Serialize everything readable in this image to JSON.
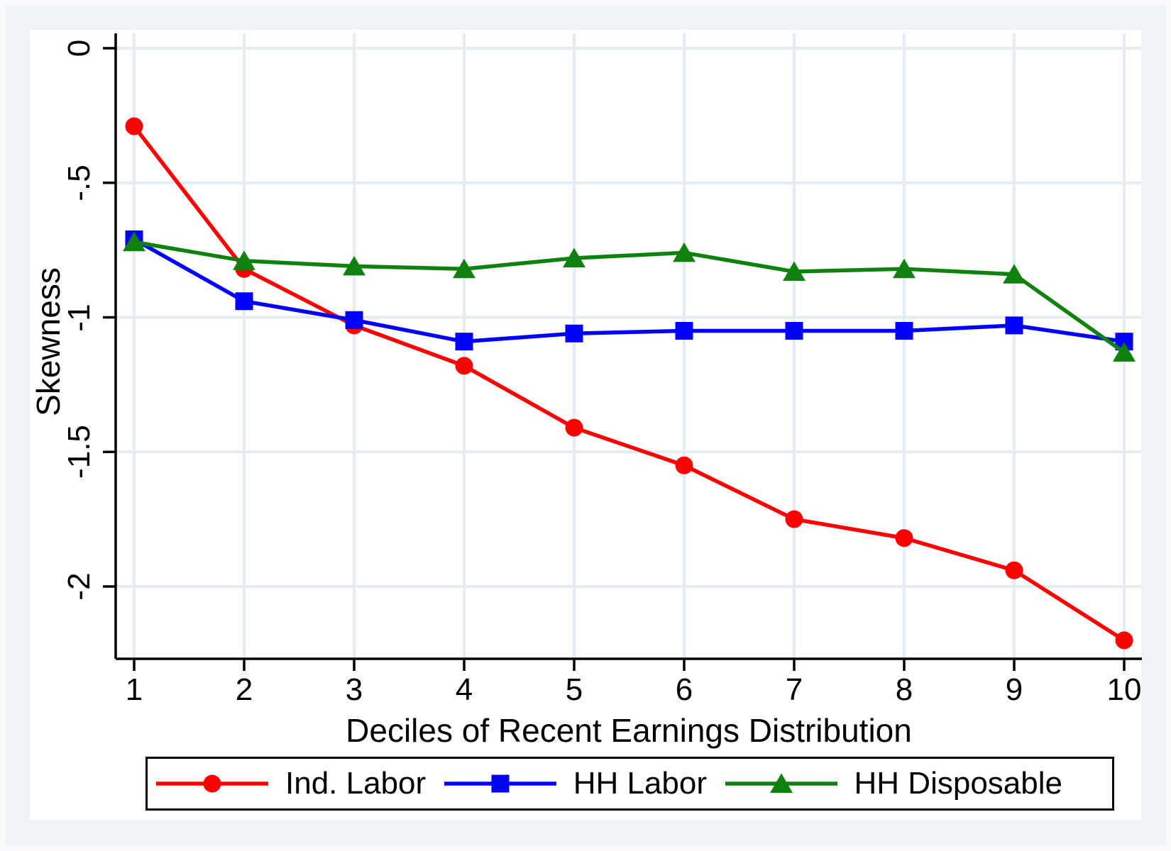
{
  "chart_data": {
    "type": "line",
    "title": "",
    "xlabel": "Deciles of Recent Earnings Distribution",
    "ylabel": "Skewness",
    "x": [
      1,
      2,
      3,
      4,
      5,
      6,
      7,
      8,
      9,
      10
    ],
    "xticks": [
      "1",
      "2",
      "3",
      "4",
      "5",
      "6",
      "7",
      "8",
      "9",
      "10"
    ],
    "yticks": [
      {
        "label": "0",
        "value": 0
      },
      {
        "label": "-.5",
        "value": -0.5
      },
      {
        "label": "-1",
        "value": -1
      },
      {
        "label": "-1.5",
        "value": -1.5
      },
      {
        "label": "-2",
        "value": -2
      }
    ],
    "xlim": [
      0.83,
      10.17
    ],
    "ylim": [
      0.06,
      -2.27
    ],
    "grid": true,
    "legend_position": "bottom",
    "series": [
      {
        "name": "Ind. Labor",
        "marker": "circle",
        "color": "#ff0000",
        "values": [
          -0.29,
          -0.82,
          -1.03,
          -1.18,
          -1.41,
          -1.55,
          -1.75,
          -1.82,
          -1.94,
          -2.2
        ]
      },
      {
        "name": "HH Labor",
        "marker": "square",
        "color": "#0000ff",
        "values": [
          -0.71,
          -0.94,
          -1.01,
          -1.09,
          -1.06,
          -1.05,
          -1.05,
          -1.05,
          -1.03,
          -1.09
        ]
      },
      {
        "name": "HH Disposable",
        "marker": "triangle",
        "color": "#0f810f",
        "values": [
          -0.72,
          -0.79,
          -0.81,
          -0.82,
          -0.78,
          -0.76,
          -0.83,
          -0.82,
          -0.84,
          -1.13
        ]
      }
    ],
    "colors": {
      "grid": "#e4ecf2",
      "axis": "#000000",
      "plot_background": "#ffffff",
      "outer_background": "#edf3f6"
    }
  }
}
